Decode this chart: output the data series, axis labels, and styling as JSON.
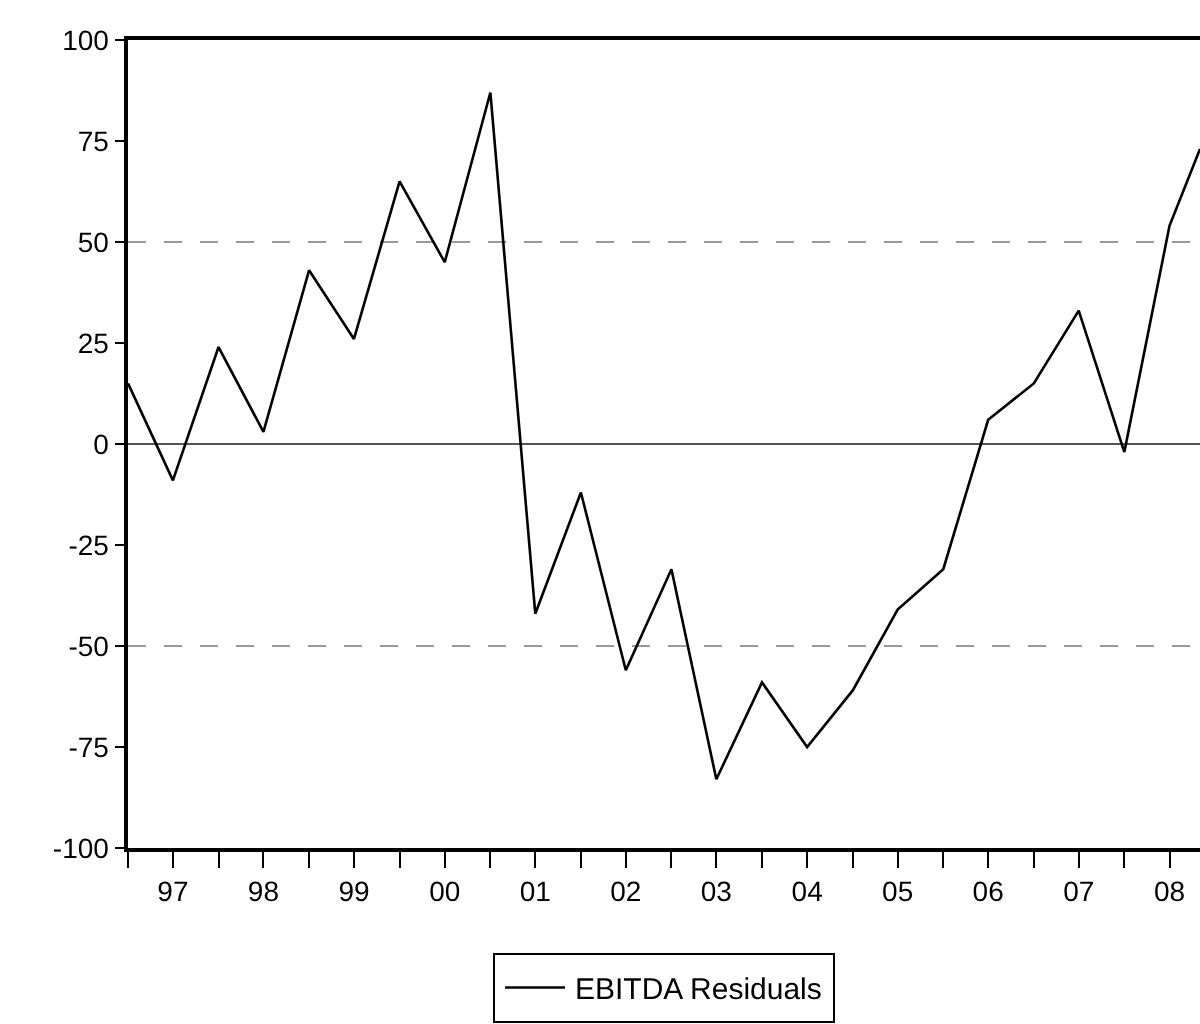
{
  "chart_data": {
    "type": "line",
    "x": [
      "1997-01",
      "1997-07",
      "1998-01",
      "1998-07",
      "1999-01",
      "1999-07",
      "2000-01",
      "2000-07",
      "2001-01",
      "2001-07",
      "2002-01",
      "2002-07",
      "2003-01",
      "2003-07",
      "2004-01",
      "2004-07",
      "2005-01",
      "2005-07",
      "2006-01",
      "2006-07",
      "2007-01",
      "2007-07",
      "2008-01",
      "2008-07",
      "2008-11"
    ],
    "series": [
      {
        "name": "EBITDA Residuals",
        "color": "#000000",
        "values": [
          15,
          -9,
          24,
          3,
          43,
          26,
          65,
          45,
          87,
          -42,
          -12,
          -56,
          -31,
          -83,
          -59,
          -75,
          -61,
          -41,
          -31,
          6,
          15,
          33,
          -2,
          54,
          73
        ]
      }
    ],
    "xlim": [
      "1997-01",
      "2008-11"
    ],
    "xticks": [
      {
        "value": "1997-01",
        "label": null
      },
      {
        "value": "1997-07",
        "label": "97"
      },
      {
        "value": "1998-01",
        "label": null
      },
      {
        "value": "1998-07",
        "label": "98"
      },
      {
        "value": "1999-01",
        "label": null
      },
      {
        "value": "1999-07",
        "label": "99"
      },
      {
        "value": "2000-01",
        "label": null
      },
      {
        "value": "2000-07",
        "label": "00"
      },
      {
        "value": "2001-01",
        "label": null
      },
      {
        "value": "2001-07",
        "label": "01"
      },
      {
        "value": "2002-01",
        "label": null
      },
      {
        "value": "2002-07",
        "label": "02"
      },
      {
        "value": "2003-01",
        "label": null
      },
      {
        "value": "2003-07",
        "label": "03"
      },
      {
        "value": "2004-01",
        "label": null
      },
      {
        "value": "2004-07",
        "label": "04"
      },
      {
        "value": "2005-01",
        "label": null
      },
      {
        "value": "2005-07",
        "label": "05"
      },
      {
        "value": "2006-01",
        "label": null
      },
      {
        "value": "2006-07",
        "label": "06"
      },
      {
        "value": "2007-01",
        "label": null
      },
      {
        "value": "2007-07",
        "label": "07"
      },
      {
        "value": "2008-01",
        "label": null
      },
      {
        "value": "2008-07",
        "label": "08"
      }
    ],
    "ylim": [
      -100,
      100
    ],
    "yticks": [
      -100,
      -75,
      -50,
      -25,
      0,
      25,
      50,
      75,
      100
    ],
    "ref_lines": [
      {
        "axis": "y",
        "value": 0,
        "label": null,
        "color": "#555555",
        "line_style": "solid"
      },
      {
        "axis": "y",
        "value": 50,
        "label": null,
        "color": "#999999",
        "line_style": "dashed"
      },
      {
        "axis": "y",
        "value": -50,
        "label": null,
        "color": "#999999",
        "line_style": "dashed"
      }
    ],
    "grid": false,
    "legend": "bottom",
    "marker": "none",
    "line_style": "solid"
  }
}
